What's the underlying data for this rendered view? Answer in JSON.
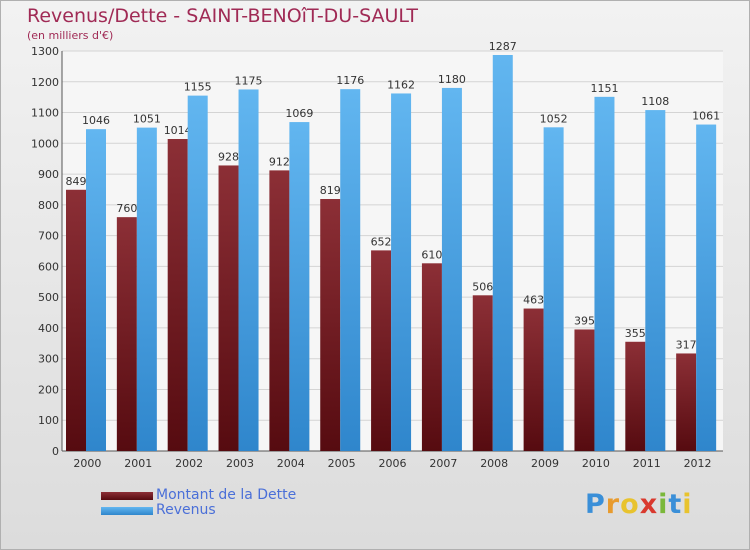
{
  "chart_data": {
    "type": "bar",
    "title": "Revenus/Dette - SAINT-BENOîT-DU-SAULT",
    "subtitle": "(en milliers d'€)",
    "categories": [
      "2000",
      "2001",
      "2002",
      "2003",
      "2004",
      "2005",
      "2006",
      "2007",
      "2008",
      "2009",
      "2010",
      "2011",
      "2012"
    ],
    "series": [
      {
        "name": "Montant de la Dette",
        "color": "#7a1e25",
        "values": [
          849,
          760,
          1014,
          928,
          912,
          819,
          652,
          610,
          506,
          463,
          395,
          355,
          317
        ]
      },
      {
        "name": "Revenus",
        "color": "#4ea6e6",
        "values": [
          1046,
          1051,
          1155,
          1175,
          1069,
          1176,
          1162,
          1180,
          1287,
          1052,
          1151,
          1108,
          1061
        ]
      }
    ],
    "ylim": [
      0,
      1300
    ],
    "yticks": [
      0,
      100,
      200,
      300,
      400,
      500,
      600,
      700,
      800,
      900,
      1000,
      1100,
      1200,
      1300
    ],
    "grid": true,
    "legend_position": "bottom-left"
  },
  "brand": {
    "letters": [
      {
        "char": "P",
        "color": "#3a8fd8"
      },
      {
        "char": "r",
        "color": "#e89b2e"
      },
      {
        "char": "o",
        "color": "#e8c32e"
      },
      {
        "char": "x",
        "color": "#d9392e"
      },
      {
        "char": "i",
        "color": "#7ab83a"
      },
      {
        "char": "t",
        "color": "#3a8fd8"
      },
      {
        "char": "i",
        "color": "#e8c32e"
      }
    ]
  }
}
